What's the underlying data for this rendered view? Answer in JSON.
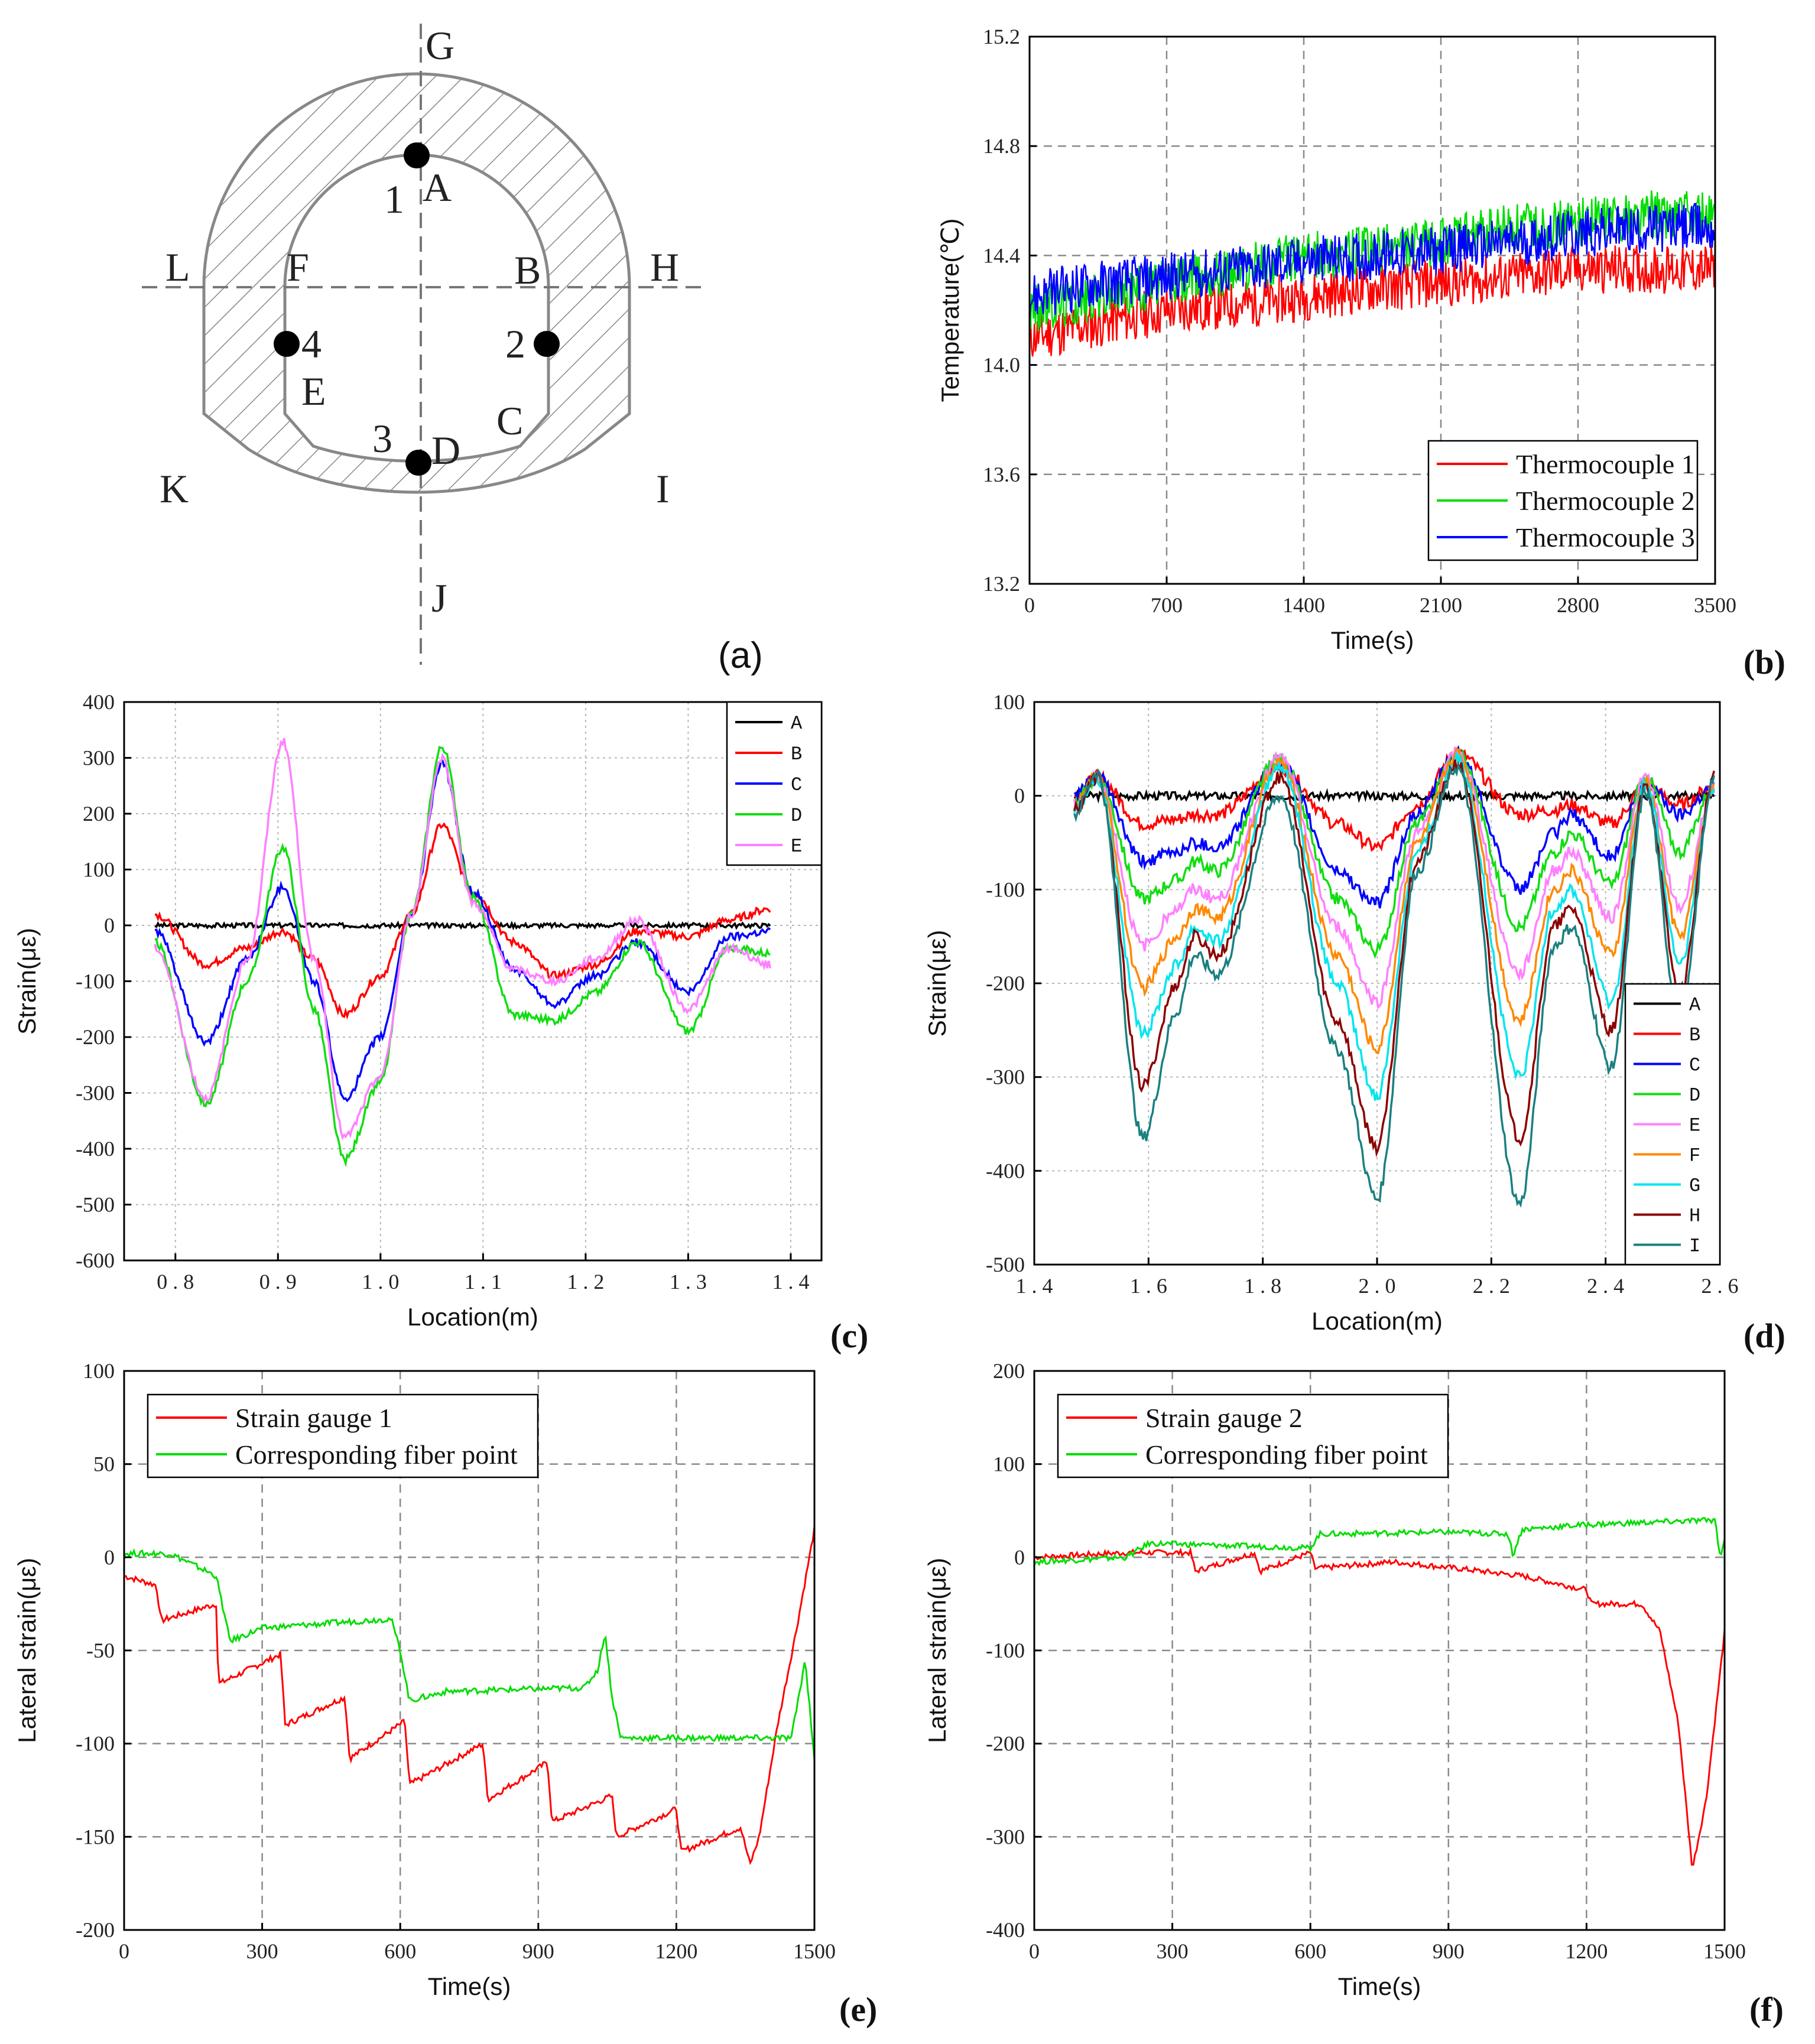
{
  "panels": {
    "a": {
      "label": "(a)"
    },
    "b": {
      "label": "(b)"
    },
    "c": {
      "label": "(c)"
    },
    "d": {
      "label": "(d)"
    },
    "e": {
      "label": "(e)"
    },
    "f": {
      "label": "(f)"
    }
  },
  "diagram": {
    "points": [
      "G",
      "A",
      "1",
      "L",
      "F",
      "B",
      "H",
      "4",
      "2",
      "E",
      "C",
      "3",
      "D",
      "K",
      "I",
      "J"
    ]
  },
  "colors": {
    "red": "#ff0000",
    "green": "#00dd00",
    "blue": "#0000ff",
    "black": "#000000",
    "red_dark": "#ff0000",
    "blue_dark": "#0000ff",
    "green_c": "#11dd11",
    "pink": "#ff80ff",
    "orange": "#ff8800",
    "cyan": "#00e5ee",
    "maroon": "#8b0000",
    "teal": "#1a8080"
  },
  "chart_data": [
    {
      "id": "b",
      "type": "line",
      "title": "",
      "xlabel": "Time(s)",
      "ylabel": "Temperature(℃)",
      "xlim": [
        0,
        3500
      ],
      "ylim": [
        13.2,
        15.2
      ],
      "xticks": [
        "0",
        "700",
        "1400",
        "2100",
        "2800",
        "3500"
      ],
      "yticks": [
        "13.2",
        "13.6",
        "14.0",
        "14.4",
        "14.8",
        "15.2"
      ],
      "x": [
        0,
        350,
        700,
        1050,
        1400,
        1750,
        2100,
        2450,
        2800,
        3150,
        3500
      ],
      "series": [
        {
          "name": "Thermocouple 1",
          "color": "#ff0000",
          "values": [
            14.1,
            14.15,
            14.2,
            14.22,
            14.25,
            14.28,
            14.3,
            14.32,
            14.35,
            14.35,
            14.35
          ]
        },
        {
          "name": "Thermocouple 2",
          "color": "#00dd00",
          "values": [
            14.2,
            14.25,
            14.3,
            14.35,
            14.4,
            14.42,
            14.45,
            14.5,
            14.52,
            14.55,
            14.55
          ]
        },
        {
          "name": "Thermocouple 3",
          "color": "#0000ff",
          "values": [
            14.25,
            14.3,
            14.32,
            14.35,
            14.38,
            14.4,
            14.42,
            14.45,
            14.48,
            14.5,
            14.5
          ]
        }
      ],
      "legend": "bottom-right"
    },
    {
      "id": "c",
      "type": "line",
      "xlabel": "Location(m)",
      "ylabel": "Strain(με)",
      "xlim": [
        0.75,
        1.43
      ],
      "ylim": [
        -600,
        400
      ],
      "xticks": [
        "0.8",
        "0.9",
        "1.0",
        "1.1",
        "1.2",
        "1.3",
        "1.4"
      ],
      "yticks": [
        "-600",
        "-500",
        "-400",
        "-300",
        "-200",
        "-100",
        "0",
        "100",
        "200",
        "300",
        "400"
      ],
      "x": [
        0.78,
        0.83,
        0.87,
        0.905,
        0.935,
        0.965,
        1.0,
        1.03,
        1.06,
        1.09,
        1.13,
        1.17,
        1.21,
        1.25,
        1.3,
        1.34,
        1.38
      ],
      "series": [
        {
          "name": "A",
          "color": "#000000",
          "values": [
            0,
            0,
            0,
            0,
            0,
            0,
            0,
            0,
            0,
            0,
            0,
            0,
            0,
            0,
            0,
            0,
            0
          ]
        },
        {
          "name": "B",
          "color": "#ff0000",
          "values": [
            20,
            -70,
            -40,
            -10,
            -60,
            -160,
            -90,
            20,
            180,
            60,
            -30,
            -90,
            -70,
            -10,
            -20,
            10,
            30
          ]
        },
        {
          "name": "C",
          "color": "#0000ff",
          "values": [
            -10,
            -210,
            -60,
            70,
            -100,
            -310,
            -200,
            20,
            290,
            60,
            -80,
            -140,
            -90,
            -30,
            -120,
            -20,
            -10
          ]
        },
        {
          "name": "D",
          "color": "#11dd11",
          "values": [
            -30,
            -320,
            -100,
            140,
            -150,
            -420,
            -280,
            20,
            320,
            50,
            -160,
            -170,
            -120,
            -30,
            -190,
            -40,
            -50
          ]
        },
        {
          "name": "E",
          "color": "#ff80ff",
          "values": [
            -40,
            -310,
            -60,
            330,
            -60,
            -380,
            -270,
            20,
            300,
            40,
            -80,
            -100,
            -60,
            10,
            -150,
            -40,
            -70
          ]
        }
      ],
      "legend": "top-right"
    },
    {
      "id": "d",
      "type": "line",
      "xlabel": "Location(m)",
      "ylabel": "Strain(με)",
      "xlim": [
        1.4,
        2.6
      ],
      "ylim": [
        -500,
        100
      ],
      "xticks": [
        "1.4",
        "1.6",
        "1.8",
        "2.0",
        "2.2",
        "2.4",
        "2.6"
      ],
      "yticks": [
        "-500",
        "-400",
        "-300",
        "-200",
        "-100",
        "0",
        "100"
      ],
      "x": [
        1.47,
        1.51,
        1.59,
        1.65,
        1.68,
        1.72,
        1.83,
        1.93,
        2.0,
        2.07,
        2.14,
        2.25,
        2.31,
        2.34,
        2.41,
        2.47,
        2.53,
        2.59
      ],
      "series": [
        {
          "name": "A",
          "color": "#000000",
          "values": [
            0,
            0,
            0,
            0,
            0,
            0,
            0,
            0,
            0,
            0,
            0,
            0,
            0,
            0,
            0,
            0,
            0,
            0
          ]
        },
        {
          "name": "B",
          "color": "#ff0000",
          "values": [
            0,
            20,
            -30,
            -25,
            -20,
            -20,
            30,
            -30,
            -55,
            -10,
            45,
            -20,
            -15,
            -10,
            -30,
            10,
            -10,
            10
          ]
        },
        {
          "name": "C",
          "color": "#0000ff",
          "values": [
            0,
            20,
            -70,
            -60,
            -50,
            -55,
            35,
            -80,
            -115,
            -20,
            45,
            -100,
            -40,
            -20,
            -65,
            15,
            -20,
            10
          ]
        },
        {
          "name": "D",
          "color": "#11dd11",
          "values": [
            -10,
            20,
            -110,
            -90,
            -70,
            -80,
            40,
            -110,
            -165,
            -30,
            45,
            -140,
            -60,
            -40,
            -95,
            20,
            -60,
            10
          ]
        },
        {
          "name": "E",
          "color": "#ff80ff",
          "values": [
            -10,
            20,
            -160,
            -120,
            -100,
            -110,
            40,
            -140,
            -220,
            -40,
            45,
            -190,
            -80,
            -60,
            -130,
            20,
            -120,
            10
          ]
        },
        {
          "name": "F",
          "color": "#ff8800",
          "values": [
            -10,
            20,
            -205,
            -150,
            -120,
            -130,
            35,
            -170,
            -270,
            -50,
            45,
            -240,
            -100,
            -80,
            -170,
            15,
            -150,
            10
          ]
        },
        {
          "name": "G",
          "color": "#00e5ee",
          "values": [
            -15,
            20,
            -255,
            -180,
            -140,
            -155,
            30,
            -200,
            -320,
            -60,
            40,
            -300,
            -120,
            -100,
            -220,
            15,
            -180,
            10
          ]
        },
        {
          "name": "H",
          "color": "#8b0000",
          "values": [
            -15,
            20,
            -310,
            -200,
            -150,
            -170,
            20,
            -240,
            -375,
            -70,
            35,
            -365,
            -140,
            -120,
            -250,
            10,
            -210,
            20
          ]
        },
        {
          "name": "I",
          "color": "#1a8080",
          "values": [
            -20,
            25,
            -365,
            -230,
            -170,
            -190,
            0,
            -270,
            -430,
            -80,
            30,
            -435,
            -160,
            -140,
            -290,
            5,
            -240,
            20
          ]
        }
      ],
      "legend": "right"
    },
    {
      "id": "e",
      "type": "line",
      "xlabel": "Time(s)",
      "ylabel": "Lateral strain(με)",
      "xlim": [
        0,
        1500
      ],
      "ylim": [
        -200,
        100
      ],
      "xticks": [
        "0",
        "300",
        "600",
        "900",
        "1200",
        "1500"
      ],
      "yticks": [
        "-200",
        "-150",
        "-100",
        "-50",
        "0",
        "50",
        "100"
      ],
      "series": [
        {
          "name": "Strain gauge 1",
          "color": "#ff0000",
          "x": [
            0,
            70,
            80,
            200,
            205,
            340,
            350,
            480,
            490,
            610,
            620,
            780,
            790,
            920,
            930,
            1060,
            1070,
            1200,
            1210,
            1340,
            1360,
            1380,
            1420,
            1460,
            1500
          ],
          "values": [
            -10,
            -15,
            -34,
            -25,
            -68,
            -52,
            -90,
            -75,
            -108,
            -88,
            -122,
            -100,
            -130,
            -110,
            -142,
            -128,
            -150,
            -135,
            -158,
            -145,
            -165,
            -150,
            -90,
            -40,
            15
          ]
        },
        {
          "name": "Corresponding fiber point",
          "color": "#00dd00",
          "x": [
            0,
            100,
            200,
            230,
            300,
            580,
            600,
            620,
            700,
            1000,
            1030,
            1045,
            1060,
            1080,
            1200,
            1450,
            1480,
            1500
          ],
          "values": [
            2,
            2,
            -10,
            -45,
            -38,
            -33,
            -50,
            -77,
            -72,
            -70,
            -60,
            -40,
            -75,
            -97,
            -97,
            -97,
            -55,
            -108
          ]
        }
      ],
      "legend": "top-left"
    },
    {
      "id": "f",
      "type": "line",
      "xlabel": "Time(s)",
      "ylabel": "Lateral strain(με)",
      "xlim": [
        0,
        1500
      ],
      "ylim": [
        -400,
        200
      ],
      "xticks": [
        "0",
        "300",
        "600",
        "900",
        "1200",
        "1500"
      ],
      "yticks": [
        "-400",
        "-300",
        "-200",
        "-100",
        "0",
        "100",
        "200"
      ],
      "series": [
        {
          "name": "Strain gauge 2",
          "color": "#ff0000",
          "x": [
            0,
            200,
            340,
            350,
            480,
            490,
            600,
            610,
            780,
            920,
            1060,
            1200,
            1210,
            1320,
            1360,
            1400,
            1430,
            1460,
            1500
          ],
          "values": [
            0,
            5,
            5,
            -15,
            5,
            -15,
            5,
            -12,
            -5,
            -12,
            -20,
            -35,
            -50,
            -50,
            -80,
            -180,
            -335,
            -260,
            -80
          ]
        },
        {
          "name": "Corresponding fiber point",
          "color": "#00dd00",
          "x": [
            0,
            200,
            250,
            600,
            620,
            900,
            1030,
            1040,
            1060,
            1200,
            1480,
            1490,
            1500
          ],
          "values": [
            -5,
            0,
            15,
            10,
            25,
            27,
            25,
            2,
            30,
            35,
            40,
            0,
            20
          ]
        }
      ],
      "legend": "top-left"
    }
  ]
}
